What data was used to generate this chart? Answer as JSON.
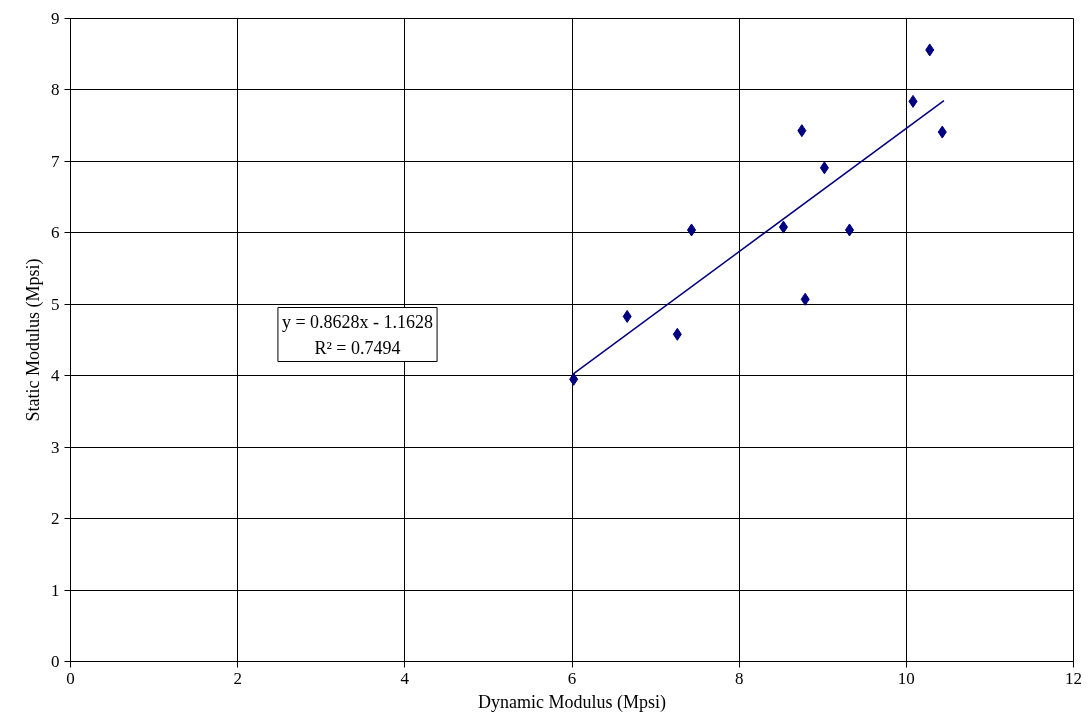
{
  "chart_data": {
    "type": "scatter",
    "xlabel": "Dynamic Modulus (Mpsi)",
    "ylabel": "Static Modulus (Mpsi)",
    "xlim": [
      0,
      12
    ],
    "ylim": [
      0,
      9
    ],
    "xticks": [
      0,
      2,
      4,
      6,
      8,
      10,
      12
    ],
    "yticks": [
      0,
      1,
      2,
      3,
      4,
      5,
      6,
      7,
      8,
      9
    ],
    "grid": true,
    "series": [
      {
        "marker": "diamond",
        "color": "#000080",
        "x": [
          6.02,
          6.66,
          7.26,
          7.43,
          8.53,
          8.75,
          8.79,
          9.02,
          9.32,
          10.08,
          10.28,
          10.43
        ],
        "values": [
          3.95,
          4.83,
          4.58,
          6.04,
          6.08,
          7.43,
          5.07,
          6.91,
          6.04,
          7.84,
          8.56,
          7.41
        ]
      },
      {
        "type": "line",
        "marker": "none",
        "color": "#000080",
        "x": [
          6.02,
          10.45
        ],
        "values": [
          4.03,
          7.85
        ]
      }
    ],
    "annotations": [
      "y = 0.8628x - 1.1628\nR² = 0.7494"
    ]
  }
}
